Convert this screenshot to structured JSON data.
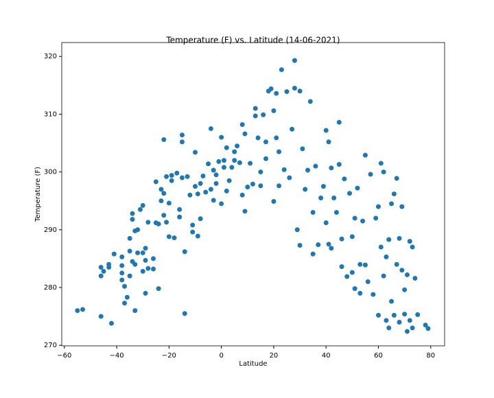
{
  "chart_data": {
    "type": "scatter",
    "title": "Temperature (F) vs. Latitude (14-06-2021)",
    "x_label": "Latitude",
    "y_label": "Temperature (F)",
    "color": "#1f77b4",
    "xlim": [
      -61,
      85.3
    ],
    "ylim": [
      269.9,
      322.4
    ],
    "xticks": [
      {
        "value": -60,
        "label": "−60"
      },
      {
        "value": -40,
        "label": "−40"
      },
      {
        "value": -20,
        "label": "−20"
      },
      0,
      20,
      40,
      60,
      80
    ],
    "yticks": [
      270,
      280,
      290,
      300,
      310,
      320
    ],
    "x": [
      -55,
      -53,
      -46,
      -42,
      -46,
      -46,
      -45,
      -43,
      -43,
      -41,
      -38,
      -38,
      -38,
      -38,
      -37,
      -37,
      -36,
      -35,
      -35,
      -35,
      -34,
      -34,
      -34,
      -33,
      -33,
      -33,
      -32,
      -32,
      -31,
      -30,
      -30,
      -30,
      -29,
      -29,
      -29,
      -28,
      -28,
      -26,
      -26,
      -25,
      -25,
      -24,
      -24,
      -23,
      -23,
      -22,
      -22,
      -22,
      -21,
      -21,
      -20,
      -20,
      -19,
      -19,
      -18,
      -17,
      -16,
      -16,
      -15,
      -15,
      -15,
      -14,
      -14,
      -13,
      -12,
      -11,
      -11,
      -10,
      -10,
      -9,
      -9,
      -8,
      -8,
      -7,
      -6,
      -5,
      -4,
      -4,
      -3,
      -3,
      -2,
      -2,
      -1,
      0,
      0,
      1,
      1,
      2,
      2,
      3,
      4,
      5,
      5,
      6,
      7,
      8,
      8,
      9,
      9,
      10,
      11,
      12,
      13,
      13,
      14,
      15,
      15,
      16,
      17,
      17,
      18,
      19,
      20,
      20,
      21,
      21,
      22,
      22,
      23,
      24,
      25,
      26,
      27,
      28,
      28,
      29,
      30,
      30,
      31,
      32,
      33,
      34,
      35,
      35,
      36,
      37,
      38,
      39,
      40,
      40,
      41,
      41,
      42,
      42,
      43,
      44,
      45,
      45,
      46,
      46,
      47,
      48,
      49,
      50,
      50,
      51,
      51,
      52,
      53,
      53,
      54,
      55,
      55,
      56,
      57,
      58,
      59,
      60,
      60,
      61,
      61,
      62,
      62,
      63,
      63,
      64,
      64,
      65,
      65,
      66,
      66,
      67,
      67,
      68,
      68,
      69,
      69,
      70,
      70,
      71,
      71,
      72,
      72,
      73,
      73,
      74,
      75,
      78,
      79
    ],
    "values": [
      276,
      276.2,
      275,
      273.8,
      282,
      283.5,
      282.8,
      283.5,
      284,
      285.8,
      285.3,
      283.8,
      282.5,
      281.3,
      280.2,
      277.3,
      278.3,
      286.3,
      288.5,
      282,
      284.5,
      291.8,
      292.8,
      289.8,
      284,
      276,
      286,
      290,
      293.5,
      294.2,
      286,
      282.8,
      279,
      286.8,
      284.7,
      283.3,
      291.3,
      283.2,
      285,
      298.3,
      291.2,
      279.8,
      291,
      295,
      297,
      305.6,
      296.3,
      292.5,
      291.3,
      299.2,
      288.8,
      294.6,
      299.4,
      298.5,
      288.6,
      299.8,
      293.5,
      292.2,
      306.4,
      305.2,
      299,
      275.5,
      286.2,
      299.2,
      296,
      289.6,
      290.8,
      303.4,
      297.5,
      296.2,
      288.9,
      298,
      291.9,
      299.3,
      296.5,
      301.4,
      307.5,
      297,
      300.3,
      295.1,
      299.5,
      298,
      301.8,
      294.5,
      306,
      302,
      300.8,
      304.2,
      296.7,
      298.5,
      300.8,
      302,
      303.5,
      304.5,
      301.6,
      308.2,
      296,
      306.6,
      293.2,
      297.4,
      301.5,
      297.9,
      311,
      309.7,
      305.9,
      300,
      297.6,
      309.9,
      305.2,
      302.3,
      314,
      314.4,
      310.6,
      294.9,
      305.9,
      313.6,
      303.5,
      297.6,
      317.7,
      300.4,
      313.9,
      299,
      307.4,
      319.3,
      314.5,
      290,
      314,
      287.3,
      304,
      297,
      300.3,
      312.2,
      285.8,
      293,
      301,
      287.4,
      295.5,
      297.5,
      307.2,
      291.2,
      305.2,
      287.5,
      300.7,
      286.8,
      295.5,
      293,
      301.3,
      308.6,
      288.4,
      283.6,
      298.8,
      281.9,
      296.3,
      288.8,
      282.6,
      292,
      279.8,
      297.2,
      284,
      279,
      291.5,
      302.9,
      283.9,
      281,
      299.6,
      278.8,
      292,
      294,
      275.2,
      301.5,
      287,
      300,
      282,
      285.3,
      274.3,
      273,
      288.3,
      277.6,
      294.5,
      296.2,
      275.2,
      284,
      298.9,
      274,
      288.5,
      294,
      283,
      275.4,
      279.6,
      272.4,
      282.2,
      288,
      274.3,
      287,
      273,
      281.6,
      275.3,
      273.5,
      272.9
    ]
  }
}
